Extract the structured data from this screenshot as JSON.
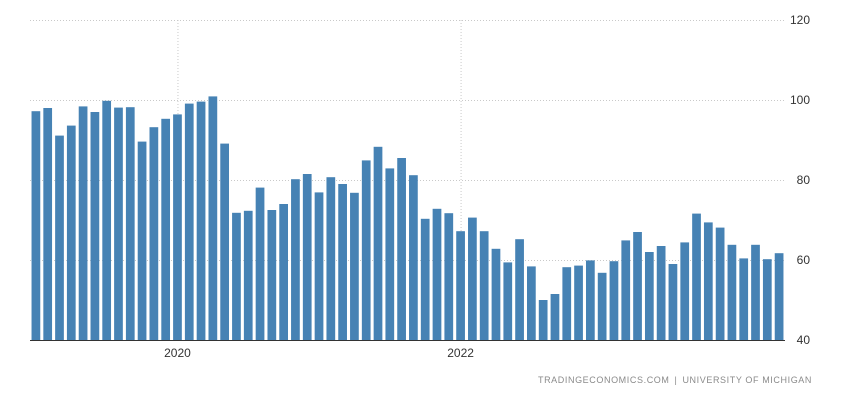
{
  "chart_data": {
    "type": "bar",
    "color": "#4682b4",
    "x": [
      "2019-01",
      "2019-02",
      "2019-03",
      "2019-04",
      "2019-05",
      "2019-06",
      "2019-07",
      "2019-08",
      "2019-09",
      "2019-10",
      "2019-11",
      "2019-12",
      "2020-01",
      "2020-02",
      "2020-03",
      "2020-04",
      "2020-05",
      "2020-06",
      "2020-07",
      "2020-08",
      "2020-09",
      "2020-10",
      "2020-11",
      "2020-12",
      "2021-01",
      "2021-02",
      "2021-03",
      "2021-04",
      "2021-05",
      "2021-06",
      "2021-07",
      "2021-08",
      "2021-09",
      "2021-10",
      "2021-11",
      "2021-12",
      "2022-01",
      "2022-02",
      "2022-03",
      "2022-04",
      "2022-05",
      "2022-06",
      "2022-07",
      "2022-08",
      "2022-09",
      "2022-10",
      "2022-11",
      "2022-12",
      "2023-01",
      "2023-02",
      "2023-03",
      "2023-04",
      "2023-05",
      "2023-06",
      "2023-07",
      "2023-08",
      "2023-09",
      "2023-10",
      "2023-11",
      "2023-12",
      "2024-01",
      "2024-02",
      "2024-03",
      "2024-04"
    ],
    "values": [
      97.2,
      98.0,
      91.1,
      93.6,
      98.4,
      97.0,
      99.8,
      98.1,
      98.2,
      89.6,
      93.2,
      95.3,
      96.4,
      99.1,
      99.6,
      100.9,
      89.1,
      71.8,
      72.3,
      78.1,
      72.5,
      74.0,
      80.2,
      81.5,
      76.9,
      80.7,
      79.0,
      76.8,
      84.9,
      88.3,
      82.9,
      85.5,
      81.2,
      70.3,
      72.8,
      71.7,
      67.2,
      70.6,
      67.2,
      62.8,
      59.4,
      65.2,
      58.4,
      50.0,
      51.5,
      58.2,
      58.6,
      59.9,
      56.8,
      59.7,
      64.9,
      67.0,
      62.0,
      63.5,
      59.0,
      64.4,
      71.6,
      69.4,
      68.1,
      63.8,
      60.4,
      63.8,
      60.2,
      61.7
    ],
    "x_ticks": [
      "2020",
      "2022"
    ],
    "y_ticks": [
      "40",
      "60",
      "80",
      "100",
      "120"
    ],
    "ylim": [
      40,
      120
    ],
    "grid": true,
    "y_axis_side": "right"
  },
  "source": {
    "left": "TRADINGECONOMICS.COM",
    "separator": "|",
    "right": "UNIVERSITY OF MICHIGAN"
  }
}
